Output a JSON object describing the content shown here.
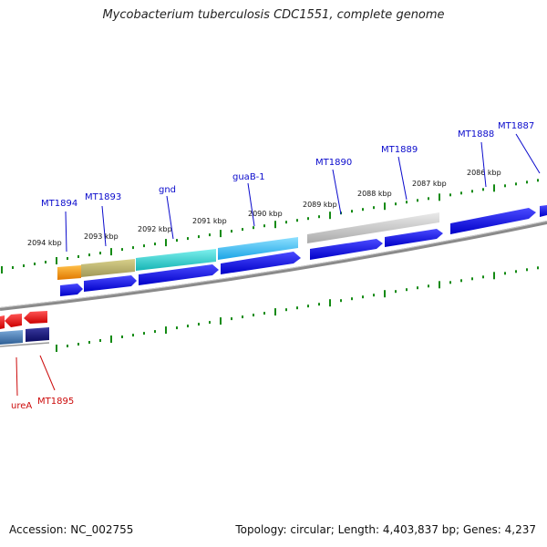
{
  "title": "Mycobacterium tuberculosis CDC1551, complete genome",
  "accession_text": "Accession: NC_002755",
  "topology_text": "Topology: circular; Length: 4,403,837 bp; Genes: 4,237",
  "colors": {
    "forward_cds": "#1515e8",
    "reverse_cds": "#e01010",
    "forward_label": "#0a0acc",
    "reverse_label": "#cc0a0a",
    "tick": "#138a13",
    "backbone": "#8a8a8a"
  },
  "scale_ticks": [
    {
      "label": "2094 kbp"
    },
    {
      "label": "2093 kbp"
    },
    {
      "label": "2092 kbp"
    },
    {
      "label": "2091 kbp"
    },
    {
      "label": "2090 kbp"
    },
    {
      "label": "2089 kbp"
    },
    {
      "label": "2088 kbp"
    },
    {
      "label": "2087 kbp"
    },
    {
      "label": "2086 kbp"
    }
  ],
  "forward_gene_labels": [
    {
      "label": "MT1894"
    },
    {
      "label": "MT1893"
    },
    {
      "label": "gnd"
    },
    {
      "label": "guaB-1"
    },
    {
      "label": "MT1890"
    },
    {
      "label": "MT1889"
    },
    {
      "label": "MT1888"
    },
    {
      "label": "MT1887"
    }
  ],
  "reverse_gene_labels": [
    {
      "label": "ureA"
    },
    {
      "label": "MT1895"
    }
  ]
}
